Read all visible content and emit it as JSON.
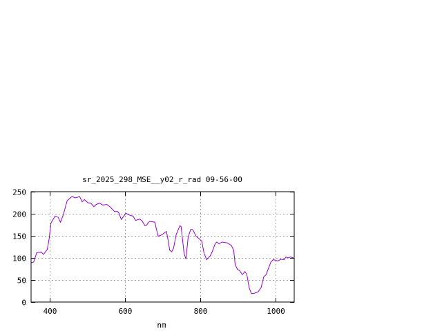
{
  "chart_data": {
    "type": "line",
    "title": "sr_2025_298_MSE__y02_r_rad 09-56-00",
    "xlabel": "nm",
    "ylabel": "",
    "xlim": [
      350,
      1050
    ],
    "ylim": [
      0,
      250
    ],
    "xticks": [
      400,
      600,
      800,
      1000
    ],
    "yticks": [
      0,
      50,
      100,
      150,
      200,
      250
    ],
    "grid": true,
    "line_color": "#9400d3",
    "series": [
      {
        "x": [
          350,
          357,
          365,
          377,
          383,
          393,
          398,
          403,
          414,
          422,
          428,
          435,
          446,
          459,
          468,
          479,
          486,
          492,
          501,
          509,
          517,
          523,
          532,
          540,
          552,
          561,
          572,
          580,
          584,
          590,
          602,
          615,
          621,
          628,
          639,
          645,
          653,
          657,
          665,
          679,
          688,
          697,
          710,
          714,
          719,
          724,
          729,
          736,
          746,
          749,
          757,
          762,
          768,
          775,
          780,
          789,
          798,
          804,
          810,
          817,
          826,
          832,
          840,
          844,
          850,
          858,
          872,
          883,
          889,
          893,
          899,
          905,
          912,
          919,
          924,
          930,
          936,
          944,
          954,
          962,
          969,
          975,
          988,
          994,
          1000,
          1006,
          1015,
          1023,
          1028,
          1034,
          1040,
          1048
        ],
        "y": [
          89,
          91,
          112,
          113,
          108,
          119,
          143,
          179,
          195,
          192,
          181,
          196,
          230,
          239,
          236,
          239,
          227,
          232,
          225,
          224,
          216,
          221,
          224,
          220,
          221,
          215,
          205,
          205,
          201,
          187,
          201,
          196,
          195,
          185,
          188,
          184,
          173,
          174,
          183,
          181,
          149,
          152,
          160,
          143,
          117,
          114,
          122,
          153,
          173,
          171,
          111,
          97,
          148,
          165,
          164,
          149,
          143,
          138,
          111,
          96,
          104,
          114,
          133,
          136,
          132,
          136,
          134,
          128,
          117,
          85,
          74,
          71,
          62,
          69,
          62,
          33,
          19,
          20,
          23,
          33,
          57,
          62,
          91,
          96,
          95,
          93,
          97,
          96,
          102,
          100,
          102,
          100
        ]
      }
    ]
  }
}
